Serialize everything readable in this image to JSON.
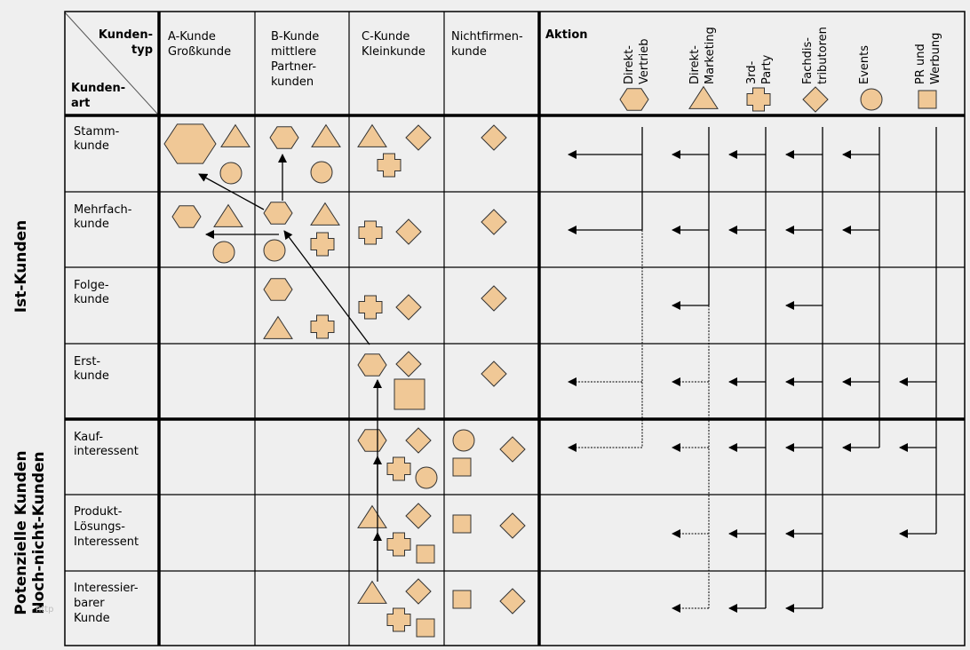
{
  "colors": {
    "background": "#efefef",
    "shape_fill": "#f0c896",
    "shape_stroke": "#333333",
    "line": "#000000"
  },
  "corner": {
    "top_label_line1": "Kunden-",
    "top_label_line2": "typ",
    "bottom_label_line1": "Kunden-",
    "bottom_label_line2": "art"
  },
  "side_labels": {
    "ist": "Ist-Kunden",
    "potenziell_line1": "Potenzielle Kunden",
    "potenziell_line2": "Noch-nicht-Kunden",
    "watermark": "http"
  },
  "columns": [
    {
      "id": "A",
      "lines": [
        "A-Kunde",
        "Großkunde"
      ]
    },
    {
      "id": "B",
      "lines": [
        "B-Kunde",
        "mittlere",
        "Partner-",
        "kunden"
      ]
    },
    {
      "id": "C",
      "lines": [
        "C-Kunde",
        "Kleinkunde"
      ]
    },
    {
      "id": "N",
      "lines": [
        "Nichtfirmen-",
        "kunde"
      ]
    }
  ],
  "action_header": "Aktion",
  "actions": [
    {
      "id": "direkt-vertrieb",
      "lines": [
        "Direkt-",
        "Vertrieb"
      ],
      "shape": "hexagon"
    },
    {
      "id": "direkt-marketing",
      "lines": [
        "Direkt-",
        "Marketing"
      ],
      "shape": "triangle"
    },
    {
      "id": "3rd-party",
      "lines": [
        "3rd-",
        "Party"
      ],
      "shape": "cross"
    },
    {
      "id": "fachdistributoren",
      "lines": [
        "Fachdis-",
        "tributoren"
      ],
      "shape": "diamond"
    },
    {
      "id": "events",
      "lines": [
        "Events"
      ],
      "shape": "circle"
    },
    {
      "id": "pr-werbung",
      "lines": [
        "PR und",
        "Werbung"
      ],
      "shape": "square"
    }
  ],
  "rows": [
    {
      "id": "stamm",
      "group": "ist",
      "lines": [
        "Stamm-",
        "kunde"
      ]
    },
    {
      "id": "mehrfach",
      "group": "ist",
      "lines": [
        "Mehrfach-",
        "kunde"
      ]
    },
    {
      "id": "folge",
      "group": "ist",
      "lines": [
        "Folge-",
        "kunde"
      ]
    },
    {
      "id": "erst",
      "group": "ist",
      "lines": [
        "Erst-",
        "kunde"
      ]
    },
    {
      "id": "kauf",
      "group": "potenziell",
      "lines": [
        "Kauf-",
        "interessent"
      ]
    },
    {
      "id": "produkt",
      "group": "potenziell",
      "lines": [
        "Produkt-",
        "Lösungs-",
        "Interessent"
      ]
    },
    {
      "id": "interessierbar",
      "group": "potenziell",
      "lines": [
        "Interessier-",
        "barer",
        "Kunde"
      ]
    }
  ],
  "cells": {
    "stamm": {
      "A": [
        "hexagon-large",
        "triangle",
        "circle"
      ],
      "B": [
        "hexagon",
        "triangle",
        "circle"
      ],
      "C": [
        "triangle",
        "diamond",
        "cross"
      ],
      "N": [
        "diamond"
      ]
    },
    "mehrfach": {
      "A": [
        "hexagon",
        "triangle",
        "circle"
      ],
      "B": [
        "hexagon",
        "triangle",
        "circle",
        "cross"
      ],
      "C": [
        "cross",
        "diamond"
      ],
      "N": [
        "diamond"
      ]
    },
    "folge": {
      "A": [],
      "B": [
        "hexagon",
        "triangle",
        "cross"
      ],
      "C": [
        "cross",
        "diamond"
      ],
      "N": [
        "diamond"
      ]
    },
    "erst": {
      "A": [],
      "B": [],
      "C": [
        "hexagon",
        "diamond",
        "square-large"
      ],
      "N": [
        "diamond"
      ]
    },
    "kauf": {
      "A": [],
      "B": [],
      "C": [
        "hexagon",
        "diamond",
        "cross",
        "circle"
      ],
      "N": [
        "circle",
        "square",
        "diamond"
      ]
    },
    "produkt": {
      "A": [],
      "B": [],
      "C": [
        "triangle",
        "diamond",
        "cross",
        "square"
      ],
      "N": [
        "square",
        "diamond"
      ]
    },
    "interessierbar": {
      "A": [],
      "B": [],
      "C": [
        "triangle",
        "diamond",
        "cross",
        "square"
      ],
      "N": [
        "square",
        "diamond"
      ]
    }
  },
  "migration_arrows": [
    {
      "from": "B-mehrfach",
      "to": "A-stamm"
    },
    {
      "from": "B-mehrfach",
      "to": "B-stamm"
    },
    {
      "from": "B-mehrfach",
      "to": "A-mehrfach"
    },
    {
      "from": "C-erst",
      "to": "B-mehrfach"
    },
    {
      "from": "C-kauf",
      "to": "C-erst"
    },
    {
      "from": "C-produkt",
      "to": "C-kauf"
    },
    {
      "from": "C-interessierbar",
      "to": "C-produkt"
    }
  ],
  "action_reach": {
    "direkt-vertrieb": {
      "solid": [
        "stamm",
        "mehrfach"
      ],
      "dotted": [
        "erst",
        "kauf"
      ]
    },
    "direkt-marketing": {
      "solid": [
        "stamm",
        "mehrfach",
        "folge"
      ],
      "dotted": [
        "erst",
        "kauf",
        "produkt",
        "interessierbar"
      ]
    },
    "3rd-party": {
      "solid": [
        "stamm",
        "mehrfach",
        "erst",
        "kauf",
        "produkt",
        "interessierbar"
      ],
      "dotted": []
    },
    "fachdistributoren": {
      "solid": [
        "stamm",
        "mehrfach",
        "folge",
        "erst",
        "kauf",
        "produkt",
        "interessierbar"
      ],
      "dotted": []
    },
    "events": {
      "solid": [
        "stamm",
        "mehrfach",
        "erst",
        "kauf"
      ],
      "dotted": []
    },
    "pr-werbung": {
      "solid": [
        "erst",
        "kauf",
        "produkt"
      ],
      "dotted": []
    }
  }
}
